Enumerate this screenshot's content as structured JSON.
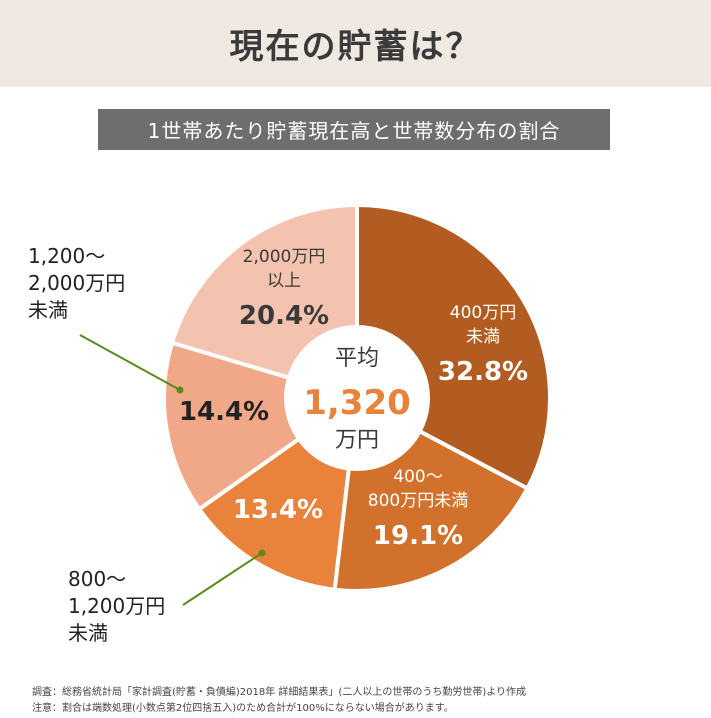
{
  "header": {
    "title": "現在の貯蓄は？"
  },
  "subtitle": "1世帯あたり貯蓄現在高と世帯数分布の割合",
  "chart_data": {
    "type": "pie",
    "title": "1世帯あたり貯蓄現在高と世帯数分布の割合",
    "center": {
      "label_top": "平均",
      "value": "1,320",
      "unit": "万円"
    },
    "slices": [
      {
        "name": "400万円未満",
        "label_lines": [
          "400万円",
          "未満"
        ],
        "percent_label": "32.8%",
        "value": 32.8,
        "color": "#b35c22",
        "outside": false
      },
      {
        "name": "400～800万円未満",
        "label_lines": [
          "400～",
          "800万円未満"
        ],
        "percent_label": "19.1%",
        "value": 19.1,
        "color": "#d1712b",
        "outside": false
      },
      {
        "name": "800～1,200万円未満",
        "label_lines": [
          "800～",
          "1,200万円",
          "未満"
        ],
        "percent_label": "13.4%",
        "value": 13.4,
        "color": "#e9823b",
        "outside": true
      },
      {
        "name": "1,200～2,000万円未満",
        "label_lines": [
          "1,200～",
          "2,000万円",
          "未満"
        ],
        "percent_label": "14.4%",
        "value": 14.4,
        "color": "#f0a889",
        "outside": true
      },
      {
        "name": "2,000万円以上",
        "label_lines": [
          "2,000万円",
          "以上"
        ],
        "percent_label": "20.4%",
        "value": 20.4,
        "color": "#f4c3b0",
        "outside": false
      }
    ],
    "leader_line_color": "#5a8a1e"
  },
  "notes": {
    "source": "調査：総務省統計局「家計調査(貯蓄・負債編)2018年  詳細結果表」(二人以上の世帯のうち勤労世帯)より作成",
    "caution": "注意：割合は端数処理(小数点第2位四捨五入)のため合計が100%にならない場合があります。"
  }
}
